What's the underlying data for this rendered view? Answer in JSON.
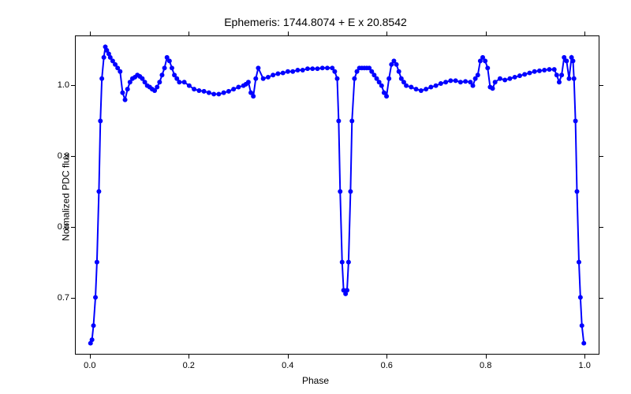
{
  "chart": {
    "type": "scatter",
    "title": "Ephemeris: 1744.8074 + E x 20.8542",
    "title_fontsize": 14,
    "xlabel": "Phase",
    "ylabel": "Normalized PDC flux",
    "label_fontsize": 12,
    "xlim": [
      -0.03,
      1.03
    ],
    "ylim": [
      0.62,
      1.07
    ],
    "xticks": [
      0.0,
      0.2,
      0.4,
      0.6,
      0.8,
      1.0
    ],
    "xtick_labels": [
      "0.0",
      "0.2",
      "0.4",
      "0.6",
      "0.8",
      "1.0"
    ],
    "yticks": [
      0.7,
      0.8,
      0.9,
      1.0
    ],
    "ytick_labels": [
      "0.7",
      "0.8",
      "0.9",
      "1.0"
    ],
    "background_color": "#ffffff",
    "series_color": "#0000ff",
    "marker_size": 3,
    "line_width": 2,
    "data": {
      "x": [
        0.0,
        0.003,
        0.006,
        0.01,
        0.013,
        0.017,
        0.02,
        0.023,
        0.027,
        0.03,
        0.033,
        0.037,
        0.04,
        0.045,
        0.05,
        0.055,
        0.06,
        0.065,
        0.07,
        0.075,
        0.08,
        0.085,
        0.09,
        0.095,
        0.1,
        0.105,
        0.11,
        0.115,
        0.12,
        0.125,
        0.13,
        0.135,
        0.14,
        0.145,
        0.15,
        0.155,
        0.16,
        0.165,
        0.17,
        0.175,
        0.18,
        0.19,
        0.2,
        0.21,
        0.22,
        0.23,
        0.24,
        0.25,
        0.26,
        0.27,
        0.28,
        0.29,
        0.3,
        0.31,
        0.315,
        0.32,
        0.325,
        0.33,
        0.335,
        0.34,
        0.35,
        0.36,
        0.37,
        0.38,
        0.39,
        0.4,
        0.41,
        0.42,
        0.43,
        0.44,
        0.45,
        0.46,
        0.47,
        0.48,
        0.49,
        0.495,
        0.5,
        0.503,
        0.506,
        0.51,
        0.513,
        0.517,
        0.52,
        0.523,
        0.527,
        0.53,
        0.535,
        0.54,
        0.545,
        0.55,
        0.555,
        0.56,
        0.565,
        0.57,
        0.575,
        0.58,
        0.585,
        0.59,
        0.595,
        0.6,
        0.605,
        0.61,
        0.615,
        0.62,
        0.625,
        0.63,
        0.635,
        0.64,
        0.65,
        0.66,
        0.67,
        0.68,
        0.69,
        0.7,
        0.71,
        0.72,
        0.73,
        0.74,
        0.75,
        0.76,
        0.77,
        0.775,
        0.78,
        0.785,
        0.79,
        0.795,
        0.8,
        0.805,
        0.81,
        0.815,
        0.82,
        0.83,
        0.84,
        0.85,
        0.86,
        0.87,
        0.88,
        0.89,
        0.9,
        0.91,
        0.92,
        0.93,
        0.94,
        0.945,
        0.95,
        0.955,
        0.96,
        0.965,
        0.97,
        0.975,
        0.978,
        0.98,
        0.983,
        0.986,
        0.99,
        0.993,
        0.996,
        1.0
      ],
      "y": [
        0.635,
        0.64,
        0.66,
        0.7,
        0.75,
        0.85,
        0.95,
        1.01,
        1.04,
        1.055,
        1.05,
        1.045,
        1.04,
        1.035,
        1.03,
        1.025,
        1.02,
        0.99,
        0.98,
        0.995,
        1.005,
        1.01,
        1.012,
        1.015,
        1.013,
        1.01,
        1.005,
        1.0,
        0.998,
        0.995,
        0.993,
        0.998,
        1.005,
        1.015,
        1.025,
        1.04,
        1.035,
        1.025,
        1.015,
        1.01,
        1.005,
        1.005,
        1.0,
        0.995,
        0.993,
        0.992,
        0.99,
        0.988,
        0.988,
        0.99,
        0.992,
        0.995,
        0.998,
        1.0,
        1.002,
        1.005,
        0.99,
        0.985,
        1.01,
        1.025,
        1.01,
        1.012,
        1.015,
        1.017,
        1.018,
        1.02,
        1.02,
        1.022,
        1.022,
        1.024,
        1.024,
        1.024,
        1.025,
        1.025,
        1.025,
        1.02,
        1.01,
        0.95,
        0.85,
        0.75,
        0.71,
        0.705,
        0.71,
        0.75,
        0.85,
        0.95,
        1.01,
        1.02,
        1.025,
        1.025,
        1.025,
        1.025,
        1.025,
        1.02,
        1.015,
        1.01,
        1.005,
        1.0,
        0.99,
        0.985,
        1.01,
        1.03,
        1.035,
        1.03,
        1.02,
        1.01,
        1.005,
        1.0,
        0.998,
        0.995,
        0.993,
        0.995,
        0.998,
        1.0,
        1.003,
        1.005,
        1.007,
        1.007,
        1.005,
        1.006,
        1.005,
        1.0,
        1.01,
        1.015,
        1.035,
        1.04,
        1.035,
        1.025,
        0.998,
        0.996,
        1.005,
        1.01,
        1.008,
        1.01,
        1.012,
        1.014,
        1.016,
        1.018,
        1.02,
        1.021,
        1.022,
        1.023,
        1.023,
        1.015,
        1.005,
        1.015,
        1.04,
        1.035,
        1.01,
        1.04,
        1.035,
        1.01,
        0.95,
        0.85,
        0.75,
        0.7,
        0.66,
        0.635
      ]
    }
  }
}
